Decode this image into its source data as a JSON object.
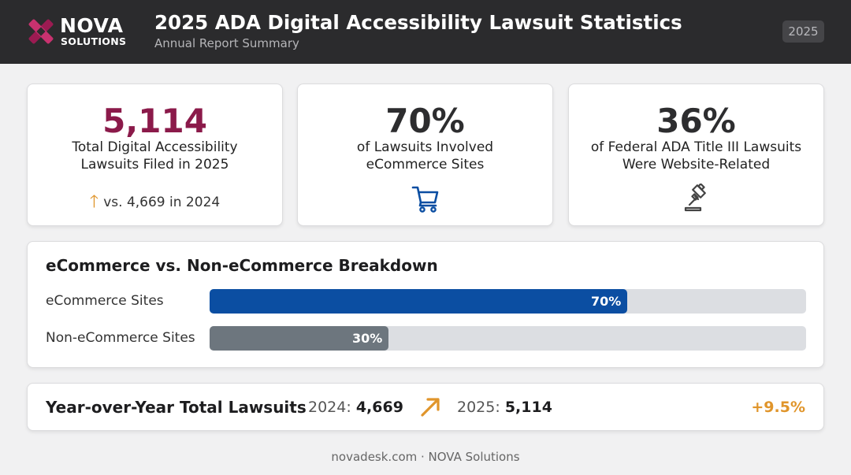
{
  "header": {
    "logo": {
      "line1": "NOVA",
      "line2": "SOLUTIONS"
    },
    "title": "2025 ADA Digital Accessibility Lawsuit Statistics",
    "subtitle": "Annual Report Summary",
    "year_badge": "2025"
  },
  "stats": [
    {
      "value": "5,114",
      "label_line1": "Total Digital Accessibility",
      "label_line2": "Lawsuits Filed in 2025",
      "foot": "vs. 4,669 in 2024",
      "value_color": "#8b1a4a",
      "icon": "arrow-up-icon"
    },
    {
      "value": "70%",
      "label_line1": "of Lawsuits Involved",
      "label_line2": "eCommerce Sites",
      "icon": "shopping-cart-icon"
    },
    {
      "value": "36%",
      "label_line1": "of Federal ADA Title III Lawsuits",
      "label_line2": "Were Website-Related",
      "icon": "gavel-icon"
    }
  ],
  "breakdown": {
    "title": "eCommerce vs. Non-eCommerce Breakdown",
    "bars": [
      {
        "label": "eCommerce Sites",
        "value": 70,
        "value_label": "70%",
        "color": "#0b4ea2"
      },
      {
        "label": "Non-eCommerce Sites",
        "value": 30,
        "value_label": "30%",
        "color": "#6d767e"
      }
    ]
  },
  "yoy": {
    "title": "Year-over-Year Total Lawsuits",
    "prev_label": "2024:",
    "prev_value": "4,669",
    "cur_label": "2025:",
    "cur_value": "5,114",
    "change": "+9.5%",
    "accent": "#e0952b"
  },
  "footer": "novadesk.com · NOVA Solutions"
}
